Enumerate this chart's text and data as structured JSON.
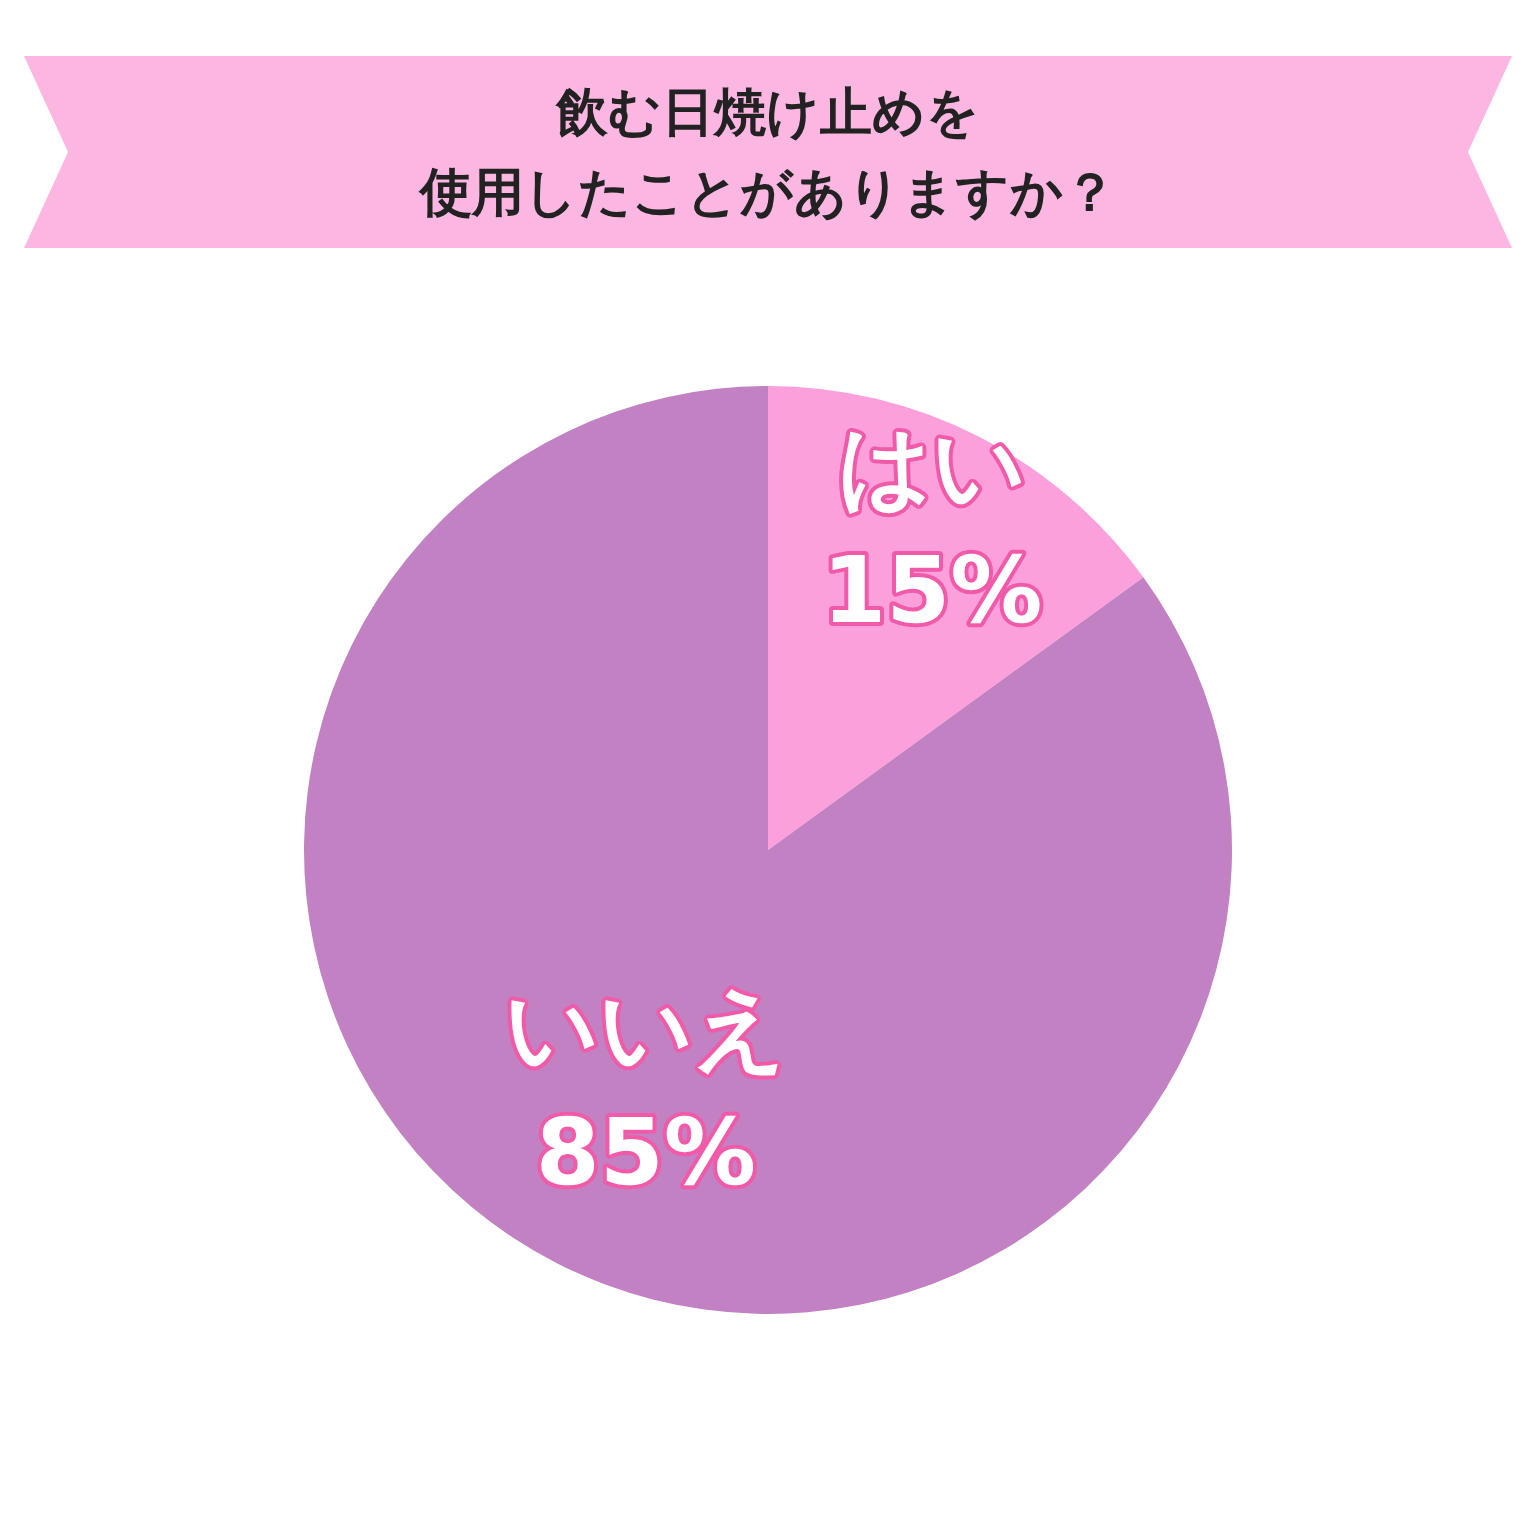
{
  "chart_data": {
    "type": "pie",
    "title": "飲む日焼け止めを使用したことがありますか？",
    "categories": [
      "はい",
      "いいえ"
    ],
    "values": [
      15,
      85
    ],
    "value_labels": [
      "15%",
      "85%"
    ],
    "colors": [
      "#fca0dc",
      "#c281c3"
    ]
  }
}
